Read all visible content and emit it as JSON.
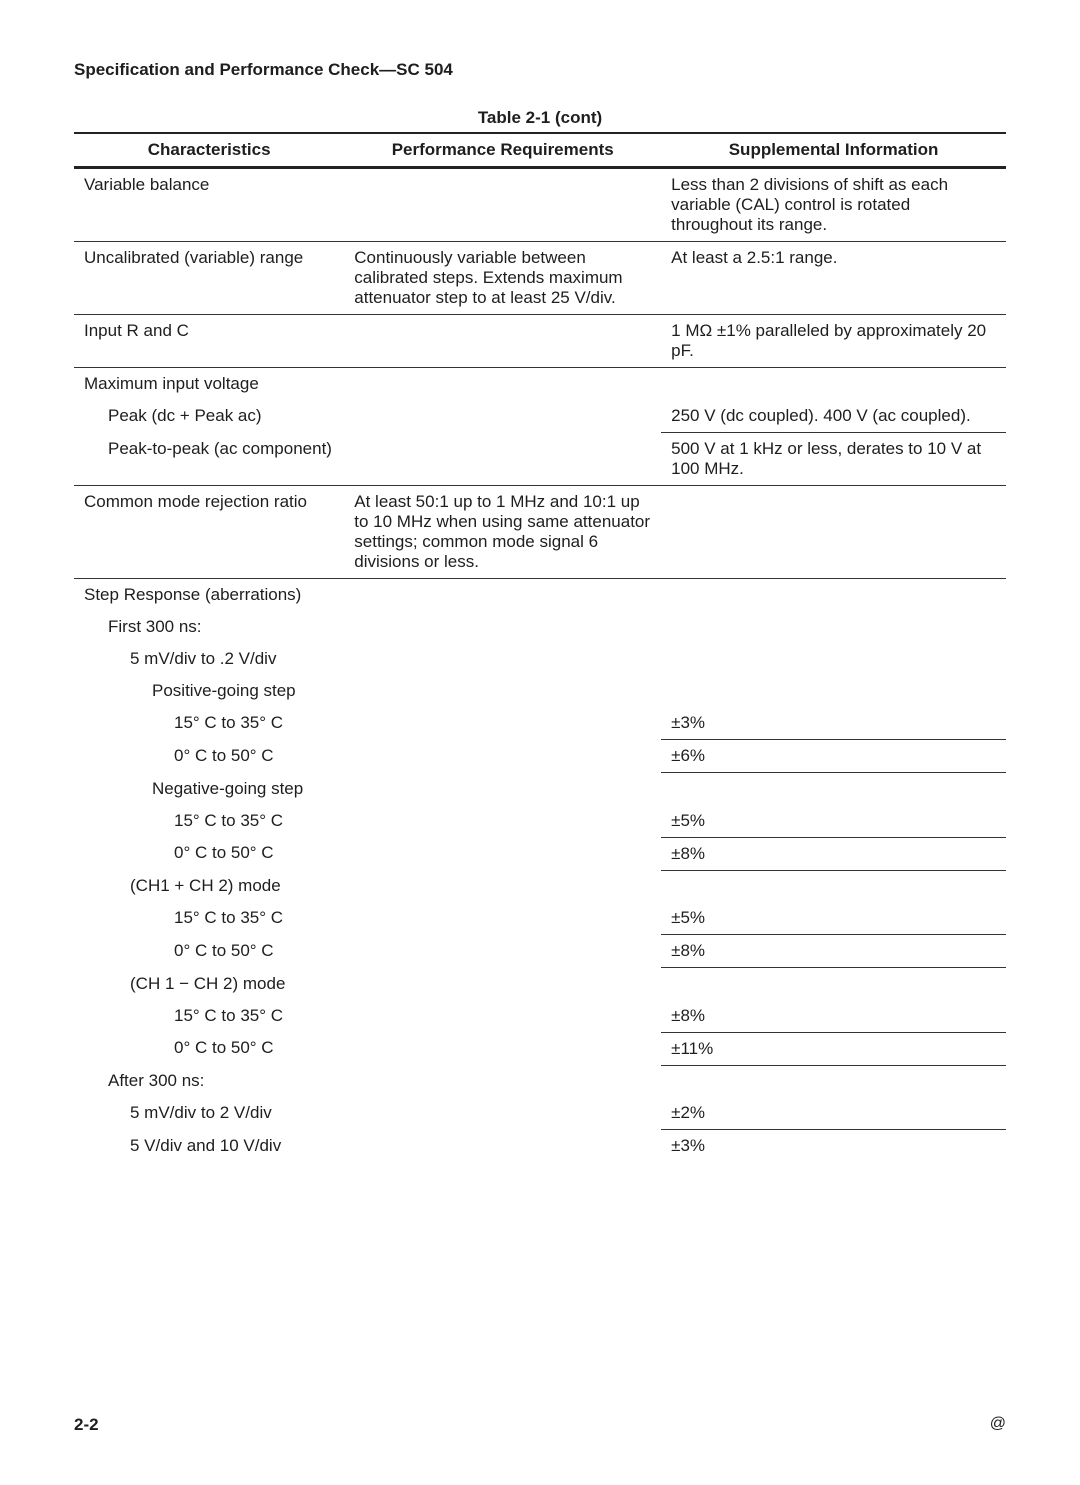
{
  "header": "Specification and Performance Check—SC 504",
  "table_caption": "Table 2-1 (cont)",
  "columns": [
    "Characteristics",
    "Performance Requirements",
    "Supplemental Information"
  ],
  "col_widths_pct": [
    29,
    34,
    37
  ],
  "font_size_pt": 13,
  "header_font_size_pt": 13,
  "background_color": "#ffffff",
  "text_color": "#1e1e1e",
  "border_color": "#333333",
  "rows": [
    {
      "c1": "Variable balance",
      "c2": "",
      "c3": "Less than 2 divisions of shift as each variable (CAL) control is rotated throughout its range."
    },
    {
      "c1": "Uncalibrated (variable) range",
      "c2": "Continuously variable between calibrated steps. Extends maximum attenuator step to at least 25 V/div.",
      "c3": "At least a 2.5:1 range."
    },
    {
      "c1": "Input R and C",
      "c2": "",
      "c3": "1 MΩ ±1% paralleled by approximately 20 pF."
    },
    {
      "c1": "Maximum input voltage",
      "c2": "",
      "c3": ""
    },
    {
      "indent": 1,
      "noborder": true,
      "partial": "c3",
      "c1": "Peak (dc + Peak ac)",
      "c2": "",
      "c3": "250 V (dc coupled). 400 V (ac coupled)."
    },
    {
      "indent": 1,
      "partial": "c3",
      "c1": "Peak-to-peak (ac component)",
      "c2": "",
      "c3": "500 V at 1 kHz or less, derates to 10 V at 100 MHz."
    },
    {
      "c1": "Common mode rejection ratio",
      "c2": "At least 50:1 up to 1 MHz and 10:1 up to 10 MHz when using same attenuator settings; common mode signal 6 divisions or less.",
      "c3": ""
    },
    {
      "c1": "Step Response (aberrations)",
      "c2": "",
      "c3": ""
    },
    {
      "indent": 1,
      "noborder": true,
      "c1": "First 300 ns:",
      "c2": "",
      "c3": ""
    },
    {
      "indent": 2,
      "noborder": true,
      "c1": "5 mV/div to .2 V/div",
      "c2": "",
      "c3": ""
    },
    {
      "indent": 3,
      "noborder": true,
      "c1": "Positive-going step",
      "c2": "",
      "c3": ""
    },
    {
      "indent": 4,
      "noborder": true,
      "partial": "c3",
      "c1": "15° C to 35° C",
      "c2": "",
      "c3": "±3%"
    },
    {
      "indent": 4,
      "partial": "c3",
      "c1": "0° C to 50° C",
      "c2": "",
      "c3": "±6%"
    },
    {
      "indent": 3,
      "partial": "c3",
      "c1": "Negative-going step",
      "c2": "",
      "c3": ""
    },
    {
      "indent": 4,
      "noborder": true,
      "partial": "c3",
      "c1": "15° C to 35° C",
      "c2": "",
      "c3": "±5%"
    },
    {
      "indent": 4,
      "partial": "c3",
      "c1": "0° C to 50° C",
      "c2": "",
      "c3": "±8%"
    },
    {
      "indent": 2,
      "partial": "c3",
      "c1": "(CH1 + CH 2) mode",
      "c2": "",
      "c3": ""
    },
    {
      "indent": 4,
      "noborder": true,
      "partial": "c3",
      "c1": "15° C to 35° C",
      "c2": "",
      "c3": "±5%"
    },
    {
      "indent": 4,
      "partial": "c3",
      "c1": "0° C to 50° C",
      "c2": "",
      "c3": "±8%"
    },
    {
      "indent": 2,
      "partial": "c3",
      "c1": "(CH 1 − CH 2) mode",
      "c2": "",
      "c3": ""
    },
    {
      "indent": 4,
      "noborder": true,
      "partial": "c3",
      "c1": "15° C to 35° C",
      "c2": "",
      "c3": "±8%"
    },
    {
      "indent": 4,
      "partial": "c3",
      "c1": "0° C to 50° C",
      "c2": "",
      "c3": "±11%"
    },
    {
      "indent": 1,
      "partial": "c3",
      "c1": "After 300 ns:",
      "c2": "",
      "c3": ""
    },
    {
      "indent": 2,
      "noborder": true,
      "partial": "c3",
      "c1": "5 mV/div to 2 V/div",
      "c2": "",
      "c3": "±2%"
    },
    {
      "indent": 2,
      "partial": "c3",
      "c1": "5 V/div and 10 V/div",
      "c2": "",
      "c3": "±3%"
    }
  ],
  "footer_left": "2-2",
  "footer_right": "@"
}
